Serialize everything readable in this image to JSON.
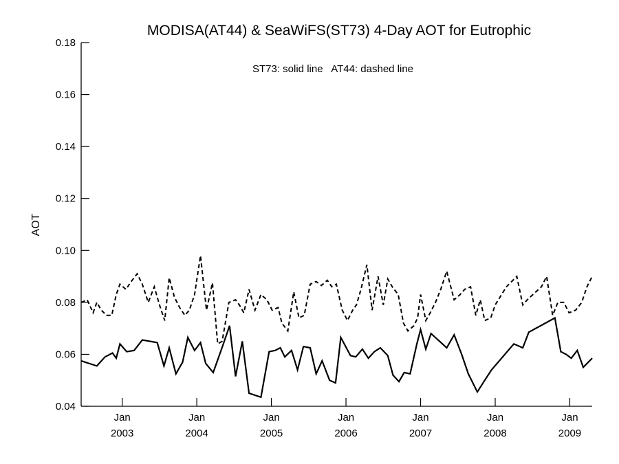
{
  "chart_data": {
    "type": "line",
    "title": "MODISA(AT44) & SeaWiFS(ST73) 4-Day AOT for Eutrophic",
    "annotation": "ST73: solid line   AT44: dashed line",
    "xlabel": "",
    "ylabel": "AOT",
    "xlim": [
      2002.45,
      2009.3
    ],
    "ylim": [
      0.04,
      0.18
    ],
    "yticks": [
      0.04,
      0.06,
      0.08,
      0.1,
      0.12,
      0.14,
      0.16,
      0.18
    ],
    "ytick_labels": [
      "0.04",
      "0.06",
      "0.08",
      "0.10",
      "0.12",
      "0.14",
      "0.16",
      "0.18"
    ],
    "xticks": [
      {
        "x": 2003.0,
        "month": "Jan",
        "year": "2003"
      },
      {
        "x": 2004.0,
        "month": "Jan",
        "year": "2004"
      },
      {
        "x": 2005.0,
        "month": "Jan",
        "year": "2005"
      },
      {
        "x": 2006.0,
        "month": "Jan",
        "year": "2006"
      },
      {
        "x": 2007.0,
        "month": "Jan",
        "year": "2007"
      },
      {
        "x": 2008.0,
        "month": "Jan",
        "year": "2008"
      },
      {
        "x": 2009.0,
        "month": "Jan",
        "year": "2009"
      }
    ],
    "grid": false,
    "series": [
      {
        "name": "ST73",
        "style": "solid",
        "color": "#000000",
        "x": [
          2002.45,
          2002.66,
          2002.77,
          2002.87,
          2002.92,
          2002.97,
          2003.06,
          2003.16,
          2003.27,
          2003.47,
          2003.56,
          2003.63,
          2003.72,
          2003.81,
          2003.88,
          2003.97,
          2004.05,
          2004.12,
          2004.22,
          2004.35,
          2004.44,
          2004.52,
          2004.61,
          2004.7,
          2004.86,
          2004.97,
          2005.05,
          2005.12,
          2005.18,
          2005.27,
          2005.35,
          2005.43,
          2005.52,
          2005.6,
          2005.68,
          2005.78,
          2005.86,
          2005.93,
          2006.06,
          2006.13,
          2006.22,
          2006.3,
          2006.38,
          2006.46,
          2006.56,
          2006.63,
          2006.71,
          2006.78,
          2006.86,
          2006.95,
          2007.0,
          2007.07,
          2007.14,
          2007.35,
          2007.45,
          2007.55,
          2007.64,
          2007.76,
          2007.86,
          2007.95,
          2008.25,
          2008.37,
          2008.45,
          2008.8,
          2008.88,
          2008.95,
          2009.02,
          2009.1,
          2009.18,
          2009.3
        ],
        "y": [
          0.0575,
          0.0555,
          0.059,
          0.0605,
          0.0585,
          0.064,
          0.061,
          0.0615,
          0.0655,
          0.0645,
          0.0555,
          0.0625,
          0.0525,
          0.057,
          0.0665,
          0.0615,
          0.0645,
          0.0565,
          0.053,
          0.0635,
          0.071,
          0.0515,
          0.065,
          0.045,
          0.0435,
          0.061,
          0.0615,
          0.0625,
          0.059,
          0.0615,
          0.054,
          0.063,
          0.0625,
          0.0525,
          0.0575,
          0.05,
          0.049,
          0.0665,
          0.0595,
          0.059,
          0.062,
          0.0585,
          0.061,
          0.0625,
          0.0595,
          0.052,
          0.0495,
          0.053,
          0.0525,
          0.064,
          0.0695,
          0.062,
          0.068,
          0.0625,
          0.0675,
          0.06,
          0.0525,
          0.0455,
          0.05,
          0.054,
          0.064,
          0.0625,
          0.0685,
          0.074,
          0.061,
          0.06,
          0.0585,
          0.0615,
          0.055,
          0.0585
        ],
        "note": "values read off the plotted line"
      },
      {
        "name": "AT44",
        "style": "dashed",
        "color": "#000000",
        "x": [
          2002.45,
          2002.53,
          2002.61,
          2002.66,
          2002.72,
          2002.79,
          2002.86,
          2002.92,
          2002.97,
          2003.05,
          2003.12,
          2003.2,
          2003.27,
          2003.35,
          2003.43,
          2003.5,
          2003.57,
          2003.63,
          2003.7,
          2003.77,
          2003.84,
          2003.9,
          2003.97,
          2004.05,
          2004.13,
          2004.21,
          2004.28,
          2004.34,
          2004.43,
          2004.52,
          2004.57,
          2004.63,
          2004.7,
          2004.78,
          2004.86,
          2004.94,
          2005.01,
          2005.09,
          2005.14,
          2005.22,
          2005.3,
          2005.37,
          2005.44,
          2005.52,
          2005.6,
          2005.67,
          2005.75,
          2005.81,
          2005.87,
          2005.95,
          2006.02,
          2006.09,
          2006.14,
          2006.2,
          2006.28,
          2006.35,
          2006.43,
          2006.5,
          2006.56,
          2006.62,
          2006.7,
          2006.77,
          2006.83,
          2006.91,
          2006.96,
          2007.0,
          2007.07,
          2007.13,
          2007.2,
          2007.27,
          2007.35,
          2007.45,
          2007.53,
          2007.59,
          2007.67,
          2007.74,
          2007.8,
          2007.86,
          2007.94,
          2008.0,
          2008.15,
          2008.29,
          2008.37,
          2008.43,
          2008.62,
          2008.69,
          2008.77,
          2008.84,
          2008.92,
          2008.99,
          2009.08,
          2009.16,
          2009.23,
          2009.3
        ],
        "y": [
          0.08,
          0.081,
          0.076,
          0.08,
          0.077,
          0.075,
          0.075,
          0.083,
          0.087,
          0.085,
          0.088,
          0.091,
          0.087,
          0.08,
          0.086,
          0.079,
          0.073,
          0.0895,
          0.082,
          0.078,
          0.075,
          0.077,
          0.083,
          0.098,
          0.077,
          0.0875,
          0.064,
          0.065,
          0.08,
          0.081,
          0.079,
          0.076,
          0.085,
          0.077,
          0.083,
          0.081,
          0.077,
          0.078,
          0.072,
          0.069,
          0.084,
          0.074,
          0.075,
          0.087,
          0.088,
          0.0865,
          0.0885,
          0.086,
          0.087,
          0.077,
          0.073,
          0.077,
          0.079,
          0.085,
          0.0945,
          0.077,
          0.09,
          0.079,
          0.089,
          0.086,
          0.083,
          0.072,
          0.069,
          0.071,
          0.074,
          0.083,
          0.073,
          0.076,
          0.08,
          0.085,
          0.092,
          0.081,
          0.083,
          0.085,
          0.086,
          0.075,
          0.081,
          0.073,
          0.074,
          0.079,
          0.086,
          0.09,
          0.079,
          0.081,
          0.086,
          0.09,
          0.075,
          0.08,
          0.08,
          0.076,
          0.077,
          0.08,
          0.086,
          0.09
        ]
      }
    ]
  }
}
